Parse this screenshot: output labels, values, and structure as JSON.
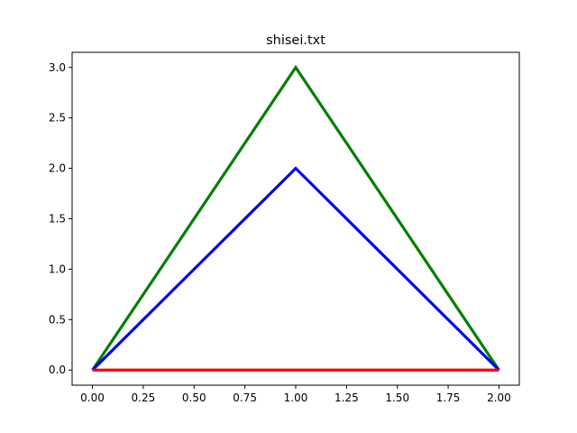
{
  "chart_data": {
    "type": "line",
    "title": "shisei.txt",
    "xlabel": "",
    "ylabel": "",
    "xlim": [
      -0.1,
      2.1
    ],
    "ylim": [
      -0.15,
      3.15
    ],
    "grid": false,
    "x_ticks": [
      {
        "value": 0.0,
        "label": "0.00"
      },
      {
        "value": 0.25,
        "label": "0.25"
      },
      {
        "value": 0.5,
        "label": "0.50"
      },
      {
        "value": 0.75,
        "label": "0.75"
      },
      {
        "value": 1.0,
        "label": "1.00"
      },
      {
        "value": 1.25,
        "label": "1.25"
      },
      {
        "value": 1.5,
        "label": "1.50"
      },
      {
        "value": 1.75,
        "label": "1.75"
      },
      {
        "value": 2.0,
        "label": "2.00"
      }
    ],
    "y_ticks": [
      {
        "value": 0.0,
        "label": "0.0"
      },
      {
        "value": 0.5,
        "label": "0.5"
      },
      {
        "value": 1.0,
        "label": "1.0"
      },
      {
        "value": 1.5,
        "label": "1.5"
      },
      {
        "value": 2.0,
        "label": "2.0"
      },
      {
        "value": 2.5,
        "label": "2.5"
      },
      {
        "value": 3.0,
        "label": "3.0"
      }
    ],
    "series": [
      {
        "color": "#008000",
        "x": [
          0,
          1,
          2
        ],
        "y": [
          0,
          3,
          0
        ]
      },
      {
        "color": "#0000ff",
        "x": [
          0,
          1,
          2
        ],
        "y": [
          0,
          2,
          0
        ]
      },
      {
        "color": "#ff0000",
        "x": [
          0,
          1,
          2
        ],
        "y": [
          0,
          0,
          0
        ]
      }
    ]
  }
}
